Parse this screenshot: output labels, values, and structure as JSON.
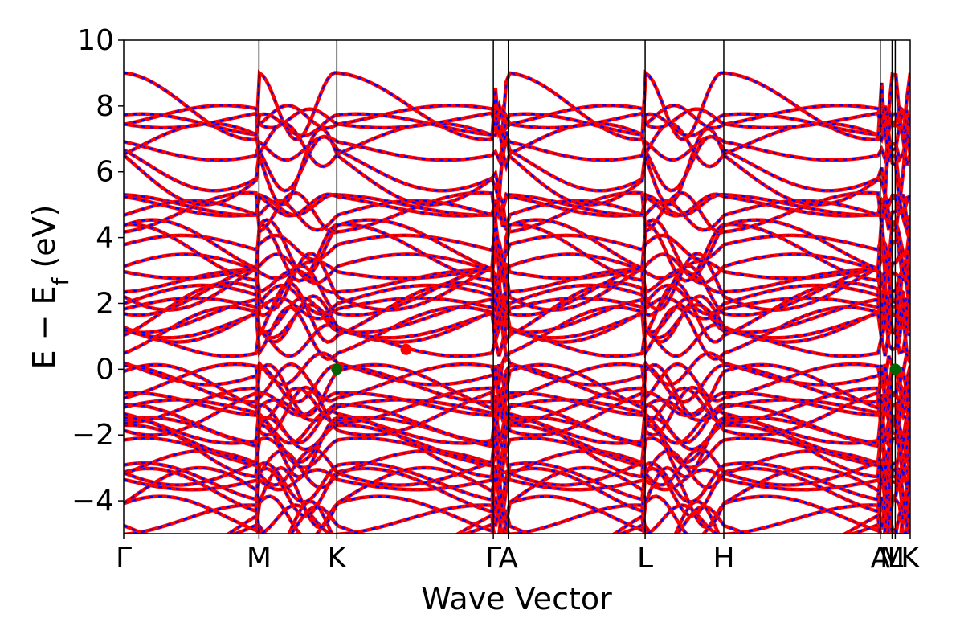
{
  "chart_data": {
    "type": "line",
    "xlabel": "Wave Vector",
    "ylabel": "E − E",
    "ylabel_sub": "f",
    "ylabel_unit": " (eV)",
    "ylim": [
      -5,
      10
    ],
    "yticks": [
      -4,
      -2,
      0,
      2,
      4,
      6,
      8,
      10
    ],
    "ytick_labels": [
      "−4",
      "−2",
      "0",
      "2",
      "4",
      "6",
      "8",
      "10"
    ],
    "grid": false,
    "xlim": [
      0,
      1
    ],
    "kpath": [
      {
        "label": "Γ",
        "x": 0.0
      },
      {
        "label": "M",
        "x": 0.172
      },
      {
        "label": "K",
        "x": 0.271
      },
      {
        "label": "Γ",
        "x": 0.47
      },
      {
        "label": "A",
        "x": 0.489
      },
      {
        "label": "L",
        "x": 0.663
      },
      {
        "label": "H",
        "x": 0.763
      },
      {
        "label": "A",
        "x": 0.962
      },
      {
        "label": "M",
        "x": 0.977
      },
      {
        "label": "L",
        "x": 0.981
      },
      {
        "label": "K",
        "x": 1.0
      }
    ],
    "series_colors": {
      "spin_up": "#ff0000",
      "spin_down": "#0000ff"
    },
    "band_cluster_centers": [
      -4.5,
      -3.5,
      -2.7,
      -2.0,
      -1.2,
      -0.4,
      1.3,
      1.9,
      2.7,
      3.4,
      5.0,
      6.6,
      7.8
    ],
    "vbm": {
      "x": 0.271,
      "y": 0.0,
      "color": "#006400"
    },
    "vbm_2": {
      "x": 0.981,
      "y": 0.0,
      "color": "#006400"
    },
    "cbm": {
      "x": 0.359,
      "y": 0.6,
      "color": "#ff0000"
    }
  }
}
